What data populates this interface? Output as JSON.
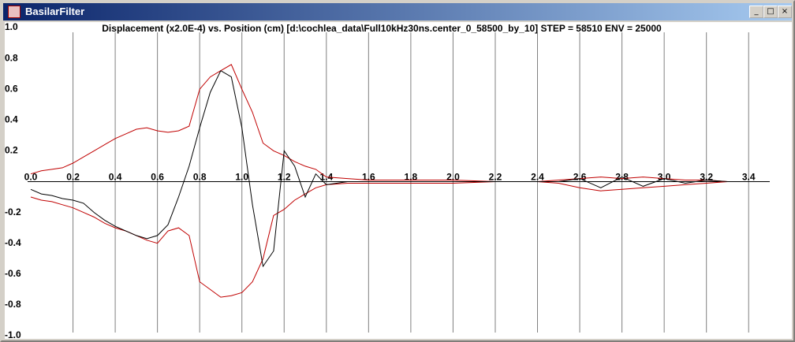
{
  "window": {
    "title": "BasilarFilter"
  },
  "chart_data": {
    "type": "line",
    "title": "Displacement (x2.0E-4) vs. Position (cm) [d:\\cochlea_data\\Full10kHz30ns.center_0_58500_by_10] STEP = 58510 ENV = 25000",
    "x": [
      0,
      0.05,
      0.1,
      0.15,
      0.2,
      0.25,
      0.3,
      0.35,
      0.4,
      0.45,
      0.5,
      0.55,
      0.6,
      0.65,
      0.7,
      0.75,
      0.8,
      0.85,
      0.9,
      0.95,
      1.0,
      1.05,
      1.1,
      1.15,
      1.2,
      1.25,
      1.3,
      1.35,
      1.4,
      1.5,
      1.6,
      1.8,
      2.0,
      2.2,
      2.4,
      2.5,
      2.6,
      2.7,
      2.8,
      2.9,
      3.0,
      3.1,
      3.2,
      3.3
    ],
    "series": [
      {
        "color": "#c00000",
        "values": [
          0.05,
          0.07,
          0.08,
          0.09,
          0.12,
          0.16,
          0.2,
          0.24,
          0.28,
          0.31,
          0.34,
          0.35,
          0.33,
          0.32,
          0.33,
          0.36,
          0.6,
          0.68,
          0.72,
          0.76,
          0.6,
          0.45,
          0.25,
          0.2,
          0.17,
          0.13,
          0.1,
          0.08,
          0.03,
          0.02,
          0.01,
          0.01,
          0.01,
          0,
          0,
          0.01,
          0.02,
          0.03,
          0.02,
          0.03,
          0.02,
          0.01,
          0.01,
          0
        ]
      },
      {
        "color": "#c00000",
        "values": [
          -0.1,
          -0.12,
          -0.13,
          -0.15,
          -0.17,
          -0.2,
          -0.23,
          -0.27,
          -0.3,
          -0.32,
          -0.35,
          -0.38,
          -0.4,
          -0.32,
          -0.3,
          -0.35,
          -0.65,
          -0.7,
          -0.75,
          -0.74,
          -0.72,
          -0.65,
          -0.5,
          -0.22,
          -0.18,
          -0.12,
          -0.08,
          -0.04,
          -0.02,
          -0.01,
          -0.01,
          -0.01,
          -0.01,
          0,
          0,
          -0.01,
          -0.04,
          -0.06,
          -0.05,
          -0.04,
          -0.03,
          -0.02,
          -0.01,
          0
        ]
      },
      {
        "color": "#000000",
        "values": [
          -0.05,
          -0.08,
          -0.09,
          -0.11,
          -0.12,
          -0.14,
          -0.2,
          -0.25,
          -0.29,
          -0.32,
          -0.35,
          -0.37,
          -0.35,
          -0.28,
          -0.1,
          0.1,
          0.35,
          0.58,
          0.72,
          0.68,
          0.35,
          -0.15,
          -0.55,
          -0.45,
          0.2,
          0.1,
          -0.1,
          0.05,
          -0.02,
          0,
          0,
          0,
          0,
          0,
          0,
          0,
          0.02,
          -0.04,
          0.03,
          -0.03,
          0.02,
          -0.01,
          0.01,
          0
        ]
      }
    ],
    "xlim": [
      0,
      3.5
    ],
    "xticks": [
      {
        "value": 0,
        "label": "0.0"
      },
      0.2,
      0.4,
      0.6,
      0.8,
      {
        "value": 1,
        "label": "1.0"
      },
      1.2,
      1.4,
      1.6,
      1.8,
      {
        "value": 2,
        "label": "2.0"
      },
      2.2,
      2.4,
      2.6,
      2.8,
      {
        "value": 3,
        "label": "3.0"
      },
      3.2,
      3.4
    ],
    "ylim": [
      -1,
      1
    ],
    "yticks": [
      {
        "value": 1,
        "label": "1.0"
      },
      0.8,
      0.6,
      0.4,
      0.2,
      -0.2,
      -0.4,
      -0.6,
      -0.8,
      {
        "value": -1,
        "label": "-1.0"
      }
    ],
    "grid": true
  }
}
